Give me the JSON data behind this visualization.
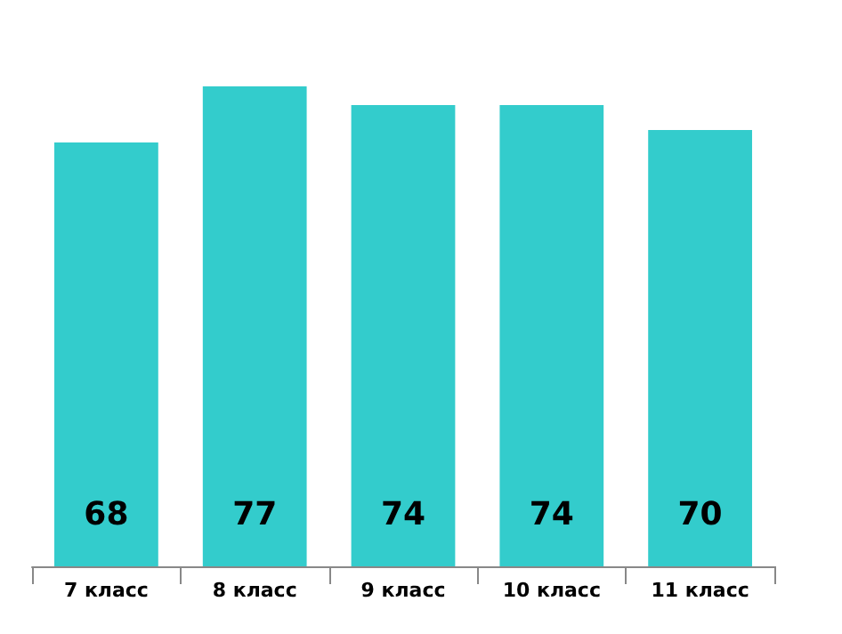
{
  "chart_data": {
    "type": "bar",
    "categories": [
      "7 класс",
      "8 класс",
      "9 класс",
      "10 класс",
      "11 класс"
    ],
    "values": [
      68,
      77,
      74,
      74,
      70
    ],
    "color": "#33cccc",
    "data_labels": true
  }
}
